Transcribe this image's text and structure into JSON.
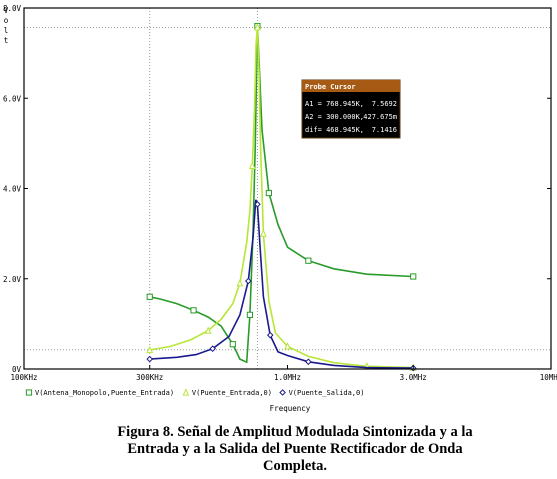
{
  "chart_data": {
    "type": "line",
    "x_scale": "log",
    "xlim": [
      100000,
      10000000
    ],
    "ylim": [
      0,
      8.0
    ],
    "ylabel_letters": [
      "V",
      "o",
      "l",
      "t"
    ],
    "xlabel": "Frequency",
    "x_ticks": [
      {
        "value": 100000,
        "label": "100KHz"
      },
      {
        "value": 300000,
        "label": "300KHz"
      },
      {
        "value": 1000000,
        "label": "1.0MHz"
      },
      {
        "value": 3000000,
        "label": "3.0MHz"
      },
      {
        "value": 10000000,
        "label": "10MHz"
      }
    ],
    "y_ticks": [
      {
        "value": 0,
        "label": "0V"
      },
      {
        "value": 2.0,
        "label": "2.0V"
      },
      {
        "value": 4.0,
        "label": "4.0V"
      },
      {
        "value": 6.0,
        "label": "6.0V"
      },
      {
        "value": 8.0,
        "label": "8.0V"
      }
    ],
    "cursors": [
      {
        "x": 768945,
        "y": 7.5692
      },
      {
        "x": 300000,
        "y": 0.427675
      }
    ],
    "series": [
      {
        "name": "V(Antena_Monopolo,Puente_Entrada)",
        "color": "#2a9a2a",
        "marker": "square",
        "points": [
          [
            300000,
            1.6
          ],
          [
            330000,
            1.55
          ],
          [
            380000,
            1.45
          ],
          [
            440000,
            1.3
          ],
          [
            500000,
            1.15
          ],
          [
            560000,
            0.95
          ],
          [
            620000,
            0.55
          ],
          [
            660000,
            0.22
          ],
          [
            700000,
            0.15
          ],
          [
            720000,
            1.2
          ],
          [
            740000,
            3.0
          ],
          [
            755000,
            5.0
          ],
          [
            768945,
            7.6
          ],
          [
            780000,
            6.8
          ],
          [
            800000,
            5.3
          ],
          [
            850000,
            3.9
          ],
          [
            920000,
            3.2
          ],
          [
            1000000,
            2.7
          ],
          [
            1200000,
            2.4
          ],
          [
            1500000,
            2.22
          ],
          [
            2000000,
            2.1
          ],
          [
            3000000,
            2.05
          ]
        ]
      },
      {
        "name": "V(Puente_Entrada,0)",
        "color": "#b8e636",
        "marker": "triangle",
        "points": [
          [
            300000,
            0.42
          ],
          [
            360000,
            0.5
          ],
          [
            430000,
            0.65
          ],
          [
            500000,
            0.85
          ],
          [
            560000,
            1.1
          ],
          [
            620000,
            1.45
          ],
          [
            660000,
            1.9
          ],
          [
            700000,
            2.8
          ],
          [
            720000,
            3.5
          ],
          [
            735000,
            4.5
          ],
          [
            750000,
            5.8
          ],
          [
            760000,
            7.2
          ],
          [
            768945,
            7.57
          ],
          [
            780000,
            6.5
          ],
          [
            790000,
            5.0
          ],
          [
            810000,
            3.0
          ],
          [
            850000,
            1.5
          ],
          [
            900000,
            0.8
          ],
          [
            1000000,
            0.5
          ],
          [
            1200000,
            0.28
          ],
          [
            1500000,
            0.14
          ],
          [
            2000000,
            0.06
          ],
          [
            3000000,
            0.03
          ]
        ]
      },
      {
        "name": "V(Puente_Salida,0)",
        "color": "#1a1a8e",
        "marker": "diamond",
        "points": [
          [
            300000,
            0.22
          ],
          [
            380000,
            0.26
          ],
          [
            450000,
            0.32
          ],
          [
            520000,
            0.45
          ],
          [
            600000,
            0.72
          ],
          [
            660000,
            1.2
          ],
          [
            710000,
            1.95
          ],
          [
            740000,
            2.9
          ],
          [
            758000,
            3.75
          ],
          [
            768945,
            3.65
          ],
          [
            785000,
            2.8
          ],
          [
            810000,
            1.6
          ],
          [
            860000,
            0.75
          ],
          [
            920000,
            0.38
          ],
          [
            1000000,
            0.3
          ],
          [
            1200000,
            0.16
          ],
          [
            1500000,
            0.08
          ],
          [
            2000000,
            0.03
          ],
          [
            3000000,
            0.02
          ]
        ]
      }
    ]
  },
  "probe": {
    "title": "Probe Cursor",
    "rows": [
      {
        "label": "A1 =",
        "x": "768.945K,",
        "y": "7.5692"
      },
      {
        "label": "A2 =",
        "x": "300.000K,",
        "y": "427.675m"
      },
      {
        "label": "dif=",
        "x": "468.945K,",
        "y": "7.1416"
      }
    ]
  },
  "caption": [
    "Figura 8. Señal de Amplitud Modulada Sintonizada y a la",
    "Entrada y a la Salida del Puente Rectificador de Onda",
    "Completa."
  ],
  "colors": {
    "grid": "#9a9a9a",
    "probe_header": "#a65a14",
    "probe_body": "#000000",
    "probe_text": "#ffffff",
    "axis": "#000000"
  }
}
